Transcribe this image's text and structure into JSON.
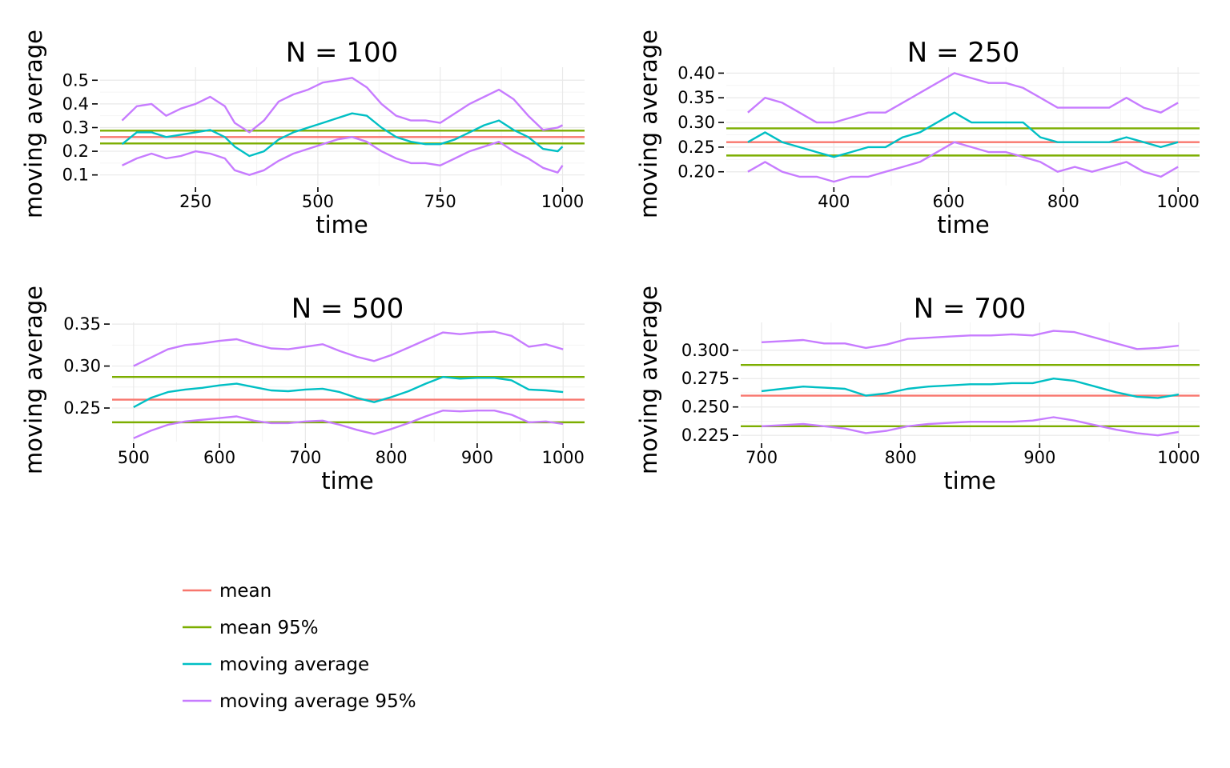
{
  "chart_data": [
    {
      "type": "line",
      "title": "N = 100",
      "xlabel": "time",
      "ylabel": "moving average",
      "xlim": [
        55,
        1045
      ],
      "ylim": [
        0.055,
        0.555
      ],
      "xticks": [
        250,
        500,
        750,
        1000
      ],
      "xtick_labels": [
        "250",
        "500",
        "750",
        "1000"
      ],
      "yticks": [
        0.1,
        0.2,
        0.3,
        0.4,
        0.5
      ],
      "ytick_labels": [
        "0.1",
        "0.2",
        "0.3",
        "0.4",
        "0.5"
      ],
      "hlines": [
        {
          "series": "mean",
          "y": 0.26
        },
        {
          "series": "mean 95%",
          "y": 0.287
        },
        {
          "series": "mean 95%",
          "y": 0.233
        }
      ],
      "series": [
        {
          "name": "moving average 95%",
          "x": [
            100,
            130,
            160,
            190,
            220,
            250,
            280,
            310,
            330,
            360,
            390,
            420,
            450,
            480,
            510,
            540,
            570,
            600,
            630,
            660,
            690,
            720,
            750,
            780,
            810,
            840,
            870,
            900,
            930,
            960,
            990,
            1000
          ],
          "values": [
            0.33,
            0.39,
            0.4,
            0.35,
            0.38,
            0.4,
            0.43,
            0.39,
            0.32,
            0.28,
            0.33,
            0.41,
            0.44,
            0.46,
            0.49,
            0.5,
            0.51,
            0.47,
            0.4,
            0.35,
            0.33,
            0.33,
            0.32,
            0.36,
            0.4,
            0.43,
            0.46,
            0.42,
            0.35,
            0.29,
            0.3,
            0.31
          ]
        },
        {
          "name": "moving average",
          "x": [
            100,
            130,
            160,
            190,
            220,
            250,
            280,
            310,
            330,
            360,
            390,
            420,
            450,
            480,
            510,
            540,
            570,
            600,
            630,
            660,
            690,
            720,
            750,
            780,
            810,
            840,
            870,
            900,
            930,
            960,
            990,
            1000
          ],
          "values": [
            0.23,
            0.28,
            0.28,
            0.26,
            0.27,
            0.28,
            0.29,
            0.26,
            0.22,
            0.18,
            0.2,
            0.25,
            0.28,
            0.3,
            0.32,
            0.34,
            0.36,
            0.35,
            0.3,
            0.26,
            0.24,
            0.23,
            0.23,
            0.25,
            0.28,
            0.31,
            0.33,
            0.29,
            0.26,
            0.21,
            0.2,
            0.22
          ]
        },
        {
          "name": "moving average 95%",
          "x": [
            100,
            130,
            160,
            190,
            220,
            250,
            280,
            310,
            330,
            360,
            390,
            420,
            450,
            480,
            510,
            540,
            570,
            600,
            630,
            660,
            690,
            720,
            750,
            780,
            810,
            840,
            870,
            900,
            930,
            960,
            990,
            1000
          ],
          "values": [
            0.14,
            0.17,
            0.19,
            0.17,
            0.18,
            0.2,
            0.19,
            0.17,
            0.12,
            0.1,
            0.12,
            0.16,
            0.19,
            0.21,
            0.23,
            0.25,
            0.26,
            0.24,
            0.2,
            0.17,
            0.15,
            0.15,
            0.14,
            0.17,
            0.2,
            0.22,
            0.24,
            0.2,
            0.17,
            0.13,
            0.11,
            0.14
          ]
        }
      ]
    },
    {
      "type": "line",
      "title": "N = 250",
      "xlabel": "time",
      "ylabel": "moving average",
      "xlim": [
        212.5,
        1037.5
      ],
      "ylim": [
        0.172,
        0.412
      ],
      "xticks": [
        400,
        600,
        800,
        1000
      ],
      "xtick_labels": [
        "400",
        "600",
        "800",
        "1000"
      ],
      "yticks": [
        0.2,
        0.25,
        0.3,
        0.35,
        0.4
      ],
      "ytick_labels": [
        "0.20",
        "0.25",
        "0.30",
        "0.35",
        "0.40"
      ],
      "hlines": [
        {
          "series": "mean",
          "y": 0.26
        },
        {
          "series": "mean 95%",
          "y": 0.288
        },
        {
          "series": "mean 95%",
          "y": 0.233
        }
      ],
      "series": [
        {
          "name": "moving average 95%",
          "x": [
            250,
            280,
            310,
            340,
            370,
            400,
            430,
            460,
            490,
            520,
            550,
            580,
            610,
            640,
            670,
            700,
            730,
            760,
            790,
            820,
            850,
            880,
            910,
            940,
            970,
            1000
          ],
          "values": [
            0.32,
            0.35,
            0.34,
            0.32,
            0.3,
            0.3,
            0.31,
            0.32,
            0.32,
            0.34,
            0.36,
            0.38,
            0.4,
            0.39,
            0.38,
            0.38,
            0.37,
            0.35,
            0.33,
            0.33,
            0.33,
            0.33,
            0.35,
            0.33,
            0.32,
            0.34
          ]
        },
        {
          "name": "moving average",
          "x": [
            250,
            280,
            310,
            340,
            370,
            400,
            430,
            460,
            490,
            520,
            550,
            580,
            610,
            640,
            670,
            700,
            730,
            760,
            790,
            820,
            850,
            880,
            910,
            940,
            970,
            1000
          ],
          "values": [
            0.26,
            0.28,
            0.26,
            0.25,
            0.24,
            0.23,
            0.24,
            0.25,
            0.25,
            0.27,
            0.28,
            0.3,
            0.32,
            0.3,
            0.3,
            0.3,
            0.3,
            0.27,
            0.26,
            0.26,
            0.26,
            0.26,
            0.27,
            0.26,
            0.25,
            0.26
          ]
        },
        {
          "name": "moving average 95%",
          "x": [
            250,
            280,
            310,
            340,
            370,
            400,
            430,
            460,
            490,
            520,
            550,
            580,
            610,
            640,
            670,
            700,
            730,
            760,
            790,
            820,
            850,
            880,
            910,
            940,
            970,
            1000
          ],
          "values": [
            0.2,
            0.22,
            0.2,
            0.19,
            0.19,
            0.18,
            0.19,
            0.19,
            0.2,
            0.21,
            0.22,
            0.24,
            0.26,
            0.25,
            0.24,
            0.24,
            0.23,
            0.22,
            0.2,
            0.21,
            0.2,
            0.21,
            0.22,
            0.2,
            0.19,
            0.21
          ]
        }
      ]
    },
    {
      "type": "line",
      "title": "N = 500",
      "xlabel": "time",
      "ylabel": "moving average",
      "xlim": [
        475,
        1025
      ],
      "ylim": [
        0.21,
        0.352
      ],
      "xticks": [
        500,
        600,
        700,
        800,
        900,
        1000
      ],
      "xtick_labels": [
        "500",
        "600",
        "700",
        "800",
        "900",
        "1000"
      ],
      "yticks": [
        0.25,
        0.3,
        0.35
      ],
      "ytick_labels": [
        "0.25",
        "0.30",
        "0.35"
      ],
      "hlines": [
        {
          "series": "mean",
          "y": 0.26
        },
        {
          "series": "mean 95%",
          "y": 0.287
        },
        {
          "series": "mean 95%",
          "y": 0.233
        }
      ],
      "series": [
        {
          "name": "moving average 95%",
          "x": [
            500,
            520,
            540,
            560,
            580,
            600,
            620,
            640,
            660,
            680,
            700,
            720,
            740,
            760,
            780,
            800,
            820,
            840,
            860,
            880,
            900,
            920,
            940,
            960,
            980,
            1000
          ],
          "values": [
            0.3,
            0.31,
            0.32,
            0.325,
            0.327,
            0.33,
            0.332,
            0.326,
            0.321,
            0.32,
            0.323,
            0.326,
            0.318,
            0.311,
            0.306,
            0.313,
            0.322,
            0.331,
            0.34,
            0.338,
            0.34,
            0.341,
            0.336,
            0.323,
            0.326,
            0.32
          ]
        },
        {
          "name": "moving average",
          "x": [
            500,
            520,
            540,
            560,
            580,
            600,
            620,
            640,
            660,
            680,
            700,
            720,
            740,
            760,
            780,
            800,
            820,
            840,
            860,
            880,
            900,
            920,
            940,
            960,
            980,
            1000
          ],
          "values": [
            0.251,
            0.262,
            0.269,
            0.272,
            0.274,
            0.277,
            0.279,
            0.275,
            0.271,
            0.27,
            0.272,
            0.273,
            0.269,
            0.262,
            0.257,
            0.263,
            0.27,
            0.279,
            0.287,
            0.285,
            0.286,
            0.286,
            0.283,
            0.272,
            0.271,
            0.269
          ]
        },
        {
          "name": "moving average 95%",
          "x": [
            500,
            520,
            540,
            560,
            580,
            600,
            620,
            640,
            660,
            680,
            700,
            720,
            740,
            760,
            780,
            800,
            820,
            840,
            860,
            880,
            900,
            920,
            940,
            960,
            980,
            1000
          ],
          "values": [
            0.214,
            0.223,
            0.23,
            0.234,
            0.236,
            0.238,
            0.24,
            0.235,
            0.232,
            0.232,
            0.234,
            0.235,
            0.23,
            0.224,
            0.219,
            0.225,
            0.232,
            0.24,
            0.247,
            0.246,
            0.247,
            0.247,
            0.242,
            0.233,
            0.234,
            0.231
          ]
        }
      ]
    },
    {
      "type": "line",
      "title": "N = 700",
      "xlabel": "time",
      "ylabel": "moving average",
      "xlim": [
        685,
        1015
      ],
      "ylim": [
        0.2195,
        0.3245
      ],
      "xticks": [
        700,
        800,
        900,
        1000
      ],
      "xtick_labels": [
        "700",
        "800",
        "900",
        "1000"
      ],
      "yticks": [
        0.225,
        0.25,
        0.275,
        0.3
      ],
      "ytick_labels": [
        "0.225",
        "0.250",
        "0.275",
        "0.300"
      ],
      "hlines": [
        {
          "series": "mean",
          "y": 0.26
        },
        {
          "series": "mean 95%",
          "y": 0.287
        },
        {
          "series": "mean 95%",
          "y": 0.233
        }
      ],
      "series": [
        {
          "name": "moving average 95%",
          "x": [
            700,
            715,
            730,
            745,
            760,
            775,
            790,
            805,
            820,
            835,
            850,
            865,
            880,
            895,
            910,
            925,
            940,
            955,
            970,
            985,
            1000
          ],
          "values": [
            0.307,
            0.308,
            0.309,
            0.306,
            0.306,
            0.302,
            0.305,
            0.31,
            0.311,
            0.312,
            0.313,
            0.313,
            0.314,
            0.313,
            0.317,
            0.316,
            0.311,
            0.306,
            0.301,
            0.302,
            0.304
          ]
        },
        {
          "name": "moving average",
          "x": [
            700,
            715,
            730,
            745,
            760,
            775,
            790,
            805,
            820,
            835,
            850,
            865,
            880,
            895,
            910,
            925,
            940,
            955,
            970,
            985,
            1000
          ],
          "values": [
            0.264,
            0.266,
            0.268,
            0.267,
            0.266,
            0.26,
            0.262,
            0.266,
            0.268,
            0.269,
            0.27,
            0.27,
            0.271,
            0.271,
            0.275,
            0.273,
            0.268,
            0.263,
            0.259,
            0.258,
            0.261
          ]
        },
        {
          "name": "moving average 95%",
          "x": [
            700,
            715,
            730,
            745,
            760,
            775,
            790,
            805,
            820,
            835,
            850,
            865,
            880,
            895,
            910,
            925,
            940,
            955,
            970,
            985,
            1000
          ],
          "values": [
            0.233,
            0.234,
            0.235,
            0.233,
            0.231,
            0.227,
            0.229,
            0.233,
            0.235,
            0.236,
            0.237,
            0.237,
            0.237,
            0.238,
            0.241,
            0.238,
            0.234,
            0.23,
            0.227,
            0.225,
            0.228
          ]
        }
      ]
    }
  ],
  "legend": {
    "items": [
      {
        "label": "mean",
        "color": "#F8766D"
      },
      {
        "label": "mean 95%",
        "color": "#7CAE00"
      },
      {
        "label": "moving average",
        "color": "#00BFC4"
      },
      {
        "label": "moving average 95%",
        "color": "#C77CFF"
      }
    ]
  },
  "colors": {
    "mean": "#F8766D",
    "mean 95%": "#7CAE00",
    "moving average": "#00BFC4",
    "moving average 95%": "#C77CFF"
  }
}
